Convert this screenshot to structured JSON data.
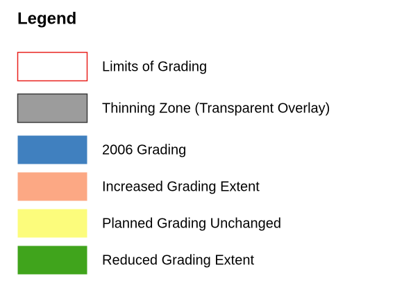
{
  "title": "Legend",
  "items": [
    {
      "label": "Limits of Grading",
      "fill": "#ffffff",
      "stroke": "#e8201c"
    },
    {
      "label": "Thinning Zone (Transparent Overlay)",
      "fill": "#9c9c9c",
      "stroke": "#3a3a3a"
    },
    {
      "label": "2006 Grading",
      "fill": "#4080bf"
    },
    {
      "label": "Increased Grading Extent",
      "fill": "#fca884"
    },
    {
      "label": "Planned Grading Unchanged",
      "fill": "#fcfc7c"
    },
    {
      "label": "Reduced Grading Extent",
      "fill": "#40a41c"
    }
  ]
}
